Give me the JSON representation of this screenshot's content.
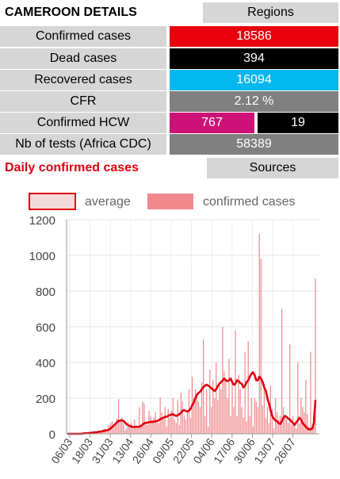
{
  "header": {
    "title": "CAMEROON DETAILS",
    "regions_button": "Regions"
  },
  "stats": {
    "confirmed": {
      "label": "Confirmed cases",
      "value": "18586",
      "color": "#e8000d"
    },
    "dead": {
      "label": "Dead cases",
      "value": "394",
      "color": "#000000"
    },
    "recovered": {
      "label": "Recovered cases",
      "value": "16094",
      "color": "#00b7ee"
    },
    "cfr": {
      "label": "CFR",
      "value": "2.12 %",
      "color": "#808080"
    },
    "hcw": {
      "label": "Confirmed HCW",
      "value_a": "767",
      "value_b": "19",
      "color_a": "#cc1277",
      "color_b": "#000000"
    },
    "tests": {
      "label": "Nb of tests (Africa CDC)",
      "value": "58389",
      "color": "#808080"
    }
  },
  "section": {
    "title": "Daily confirmed cases",
    "sources_button": "Sources"
  },
  "chart_data": {
    "type": "bar",
    "legend": [
      "average",
      "confirmed cases"
    ],
    "legend_position": "top",
    "colors": {
      "bars": "#f08a8e",
      "average": "#e00010"
    },
    "ylim": [
      0,
      1200
    ],
    "yticks": [
      0,
      200,
      400,
      600,
      800,
      1000,
      1200
    ],
    "xtick_labels": [
      "06/03",
      "18/03",
      "31/03",
      "13/04",
      "26/04",
      "09/05",
      "22/05",
      "04/06",
      "17/06",
      "30/06",
      "13/07",
      "26/07"
    ],
    "confirmed": [
      1,
      0,
      0,
      1,
      0,
      0,
      1,
      2,
      0,
      3,
      5,
      3,
      4,
      8,
      3,
      5,
      6,
      11,
      10,
      12,
      18,
      5,
      25,
      30,
      20,
      15,
      48,
      60,
      70,
      40,
      50,
      85,
      195,
      80,
      90,
      60,
      20,
      30,
      65,
      40,
      60,
      30,
      80,
      40,
      30,
      150,
      40,
      180,
      170,
      60,
      50,
      130,
      100,
      80,
      90,
      120,
      70,
      60,
      205,
      120,
      80,
      150,
      40,
      140,
      90,
      130,
      200,
      80,
      60,
      190,
      50,
      230,
      180,
      100,
      80,
      120,
      250,
      90,
      320,
      200,
      250,
      210,
      180,
      150,
      290,
      530,
      100,
      250,
      40,
      360,
      150,
      300,
      200,
      400,
      190,
      280,
      250,
      600,
      350,
      300,
      200,
      420,
      100,
      300,
      150,
      580,
      100,
      330,
      250,
      150,
      90,
      460,
      70,
      520,
      100,
      200,
      40,
      200,
      180,
      150,
      1120,
      980,
      160,
      280,
      90,
      150,
      60,
      270,
      140,
      30,
      200,
      120,
      80,
      100,
      700,
      150,
      90,
      80,
      60,
      500,
      50,
      100,
      50,
      30,
      400,
      60,
      200,
      150,
      120,
      300,
      110,
      40,
      460,
      30,
      90,
      870
    ],
    "average": [
      0,
      0,
      0,
      0,
      0,
      0,
      0,
      0,
      0,
      1,
      2,
      3,
      3,
      4,
      5,
      6,
      6,
      8,
      9,
      10,
      12,
      12,
      14,
      17,
      19,
      20,
      24,
      30,
      38,
      46,
      55,
      65,
      72,
      74,
      76,
      72,
      64,
      54,
      48,
      44,
      40,
      38,
      38,
      40,
      38,
      40,
      44,
      52,
      58,
      62,
      62,
      65,
      66,
      66,
      68,
      70,
      72,
      75,
      82,
      86,
      90,
      95,
      96,
      100,
      105,
      108,
      110,
      104,
      100,
      105,
      110,
      118,
      130,
      132,
      128,
      125,
      130,
      140,
      160,
      175,
      200,
      220,
      230,
      236,
      250,
      262,
      270,
      275,
      270,
      265,
      255,
      248,
      240,
      250,
      268,
      280,
      290,
      298,
      310,
      300,
      295,
      300,
      310,
      290,
      275,
      280,
      300,
      295,
      285,
      280,
      260,
      270,
      290,
      300,
      320,
      335,
      345,
      330,
      300,
      300,
      320,
      310,
      290,
      260,
      240,
      200,
      170,
      130,
      100,
      85,
      75,
      70,
      60,
      55,
      70,
      90,
      100,
      95,
      85,
      80,
      70,
      60,
      50,
      65,
      75,
      90,
      80,
      60,
      50,
      40,
      30,
      25,
      25,
      30,
      60,
      190
    ]
  }
}
